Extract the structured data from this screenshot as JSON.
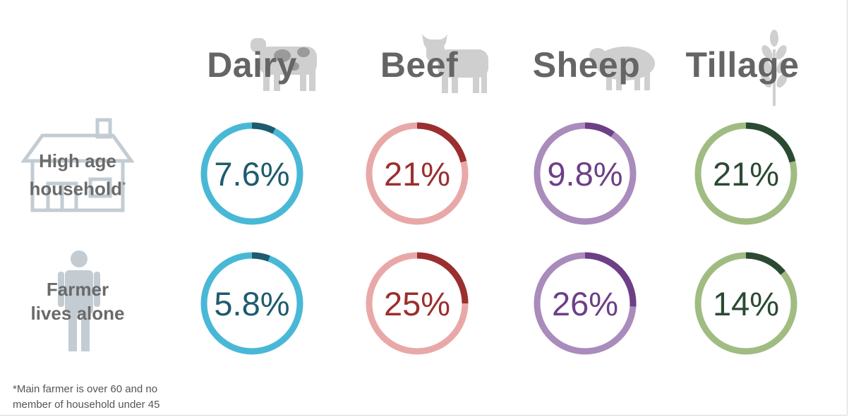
{
  "chart_data": {
    "type": "donut-grid",
    "columns": [
      {
        "name": "Dairy",
        "icon": "cow-icon",
        "track": "#49b8d6",
        "accent": "#1e5b6e",
        "text": "#1e5b6e"
      },
      {
        "name": "Beef",
        "icon": "bull-icon",
        "track": "#e9a8a8",
        "accent": "#9b2f2f",
        "text": "#9b2f2f"
      },
      {
        "name": "Sheep",
        "icon": "sheep-icon",
        "track": "#a98bbc",
        "accent": "#6d3f86",
        "text": "#6d3f86"
      },
      {
        "name": "Tillage",
        "icon": "wheat-icon",
        "track": "#a0bc82",
        "accent": "#2b4a33",
        "text": "#2b4a33"
      }
    ],
    "rows": [
      {
        "label_line1": "High age",
        "label_line2": "household",
        "marker": "*",
        "icon": "house-icon",
        "values": [
          7.6,
          21,
          9.8,
          21
        ],
        "display": [
          "7.6%",
          "21%",
          "9.8%",
          "21%"
        ]
      },
      {
        "label_line1": "Farmer",
        "label_line2": "lives alone",
        "marker": "",
        "icon": "person-icon",
        "values": [
          5.8,
          25,
          26,
          14
        ],
        "display": [
          "5.8%",
          "25%",
          "26%",
          "14%"
        ]
      }
    ],
    "unit": "%"
  },
  "footnote": {
    "line1": "*Main farmer is over 60 and no",
    "line2": "member of household under 45"
  },
  "colors": {
    "title": "#656565",
    "label": "#6a6a6a",
    "icon": "#c3ccd3"
  }
}
